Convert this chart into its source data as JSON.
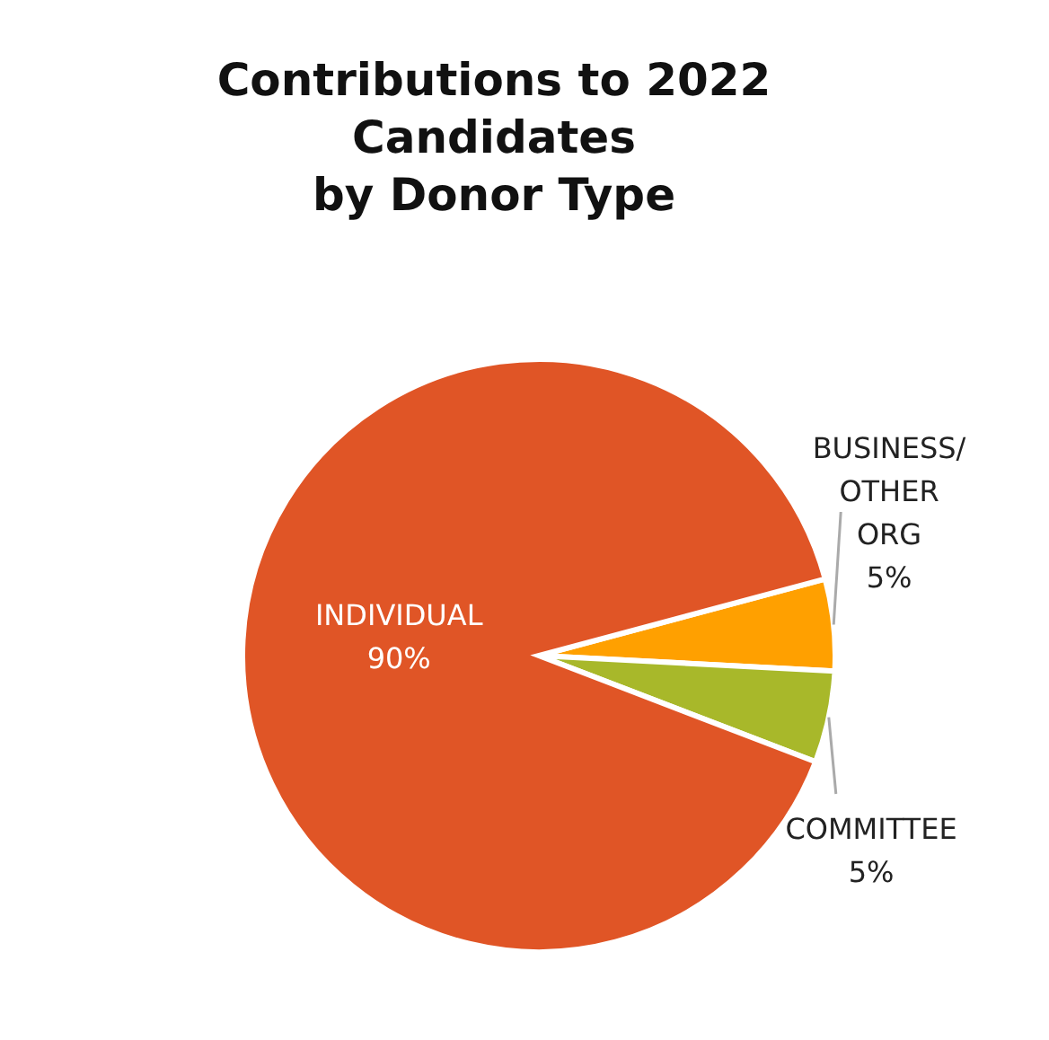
{
  "chart_data": {
    "type": "pie",
    "title": "Contributions to 2022\nCandidates\nby Donor Type",
    "categories": [
      "BUSINESS/\nOTHER\nORG",
      "COMMITTEE",
      "INDIVIDUAL"
    ],
    "values": [
      5,
      5,
      90
    ],
    "value_labels": [
      "5%",
      "5%",
      "90%"
    ],
    "colors": [
      "#ffa000",
      "#a8b82a",
      "#e05526"
    ]
  }
}
